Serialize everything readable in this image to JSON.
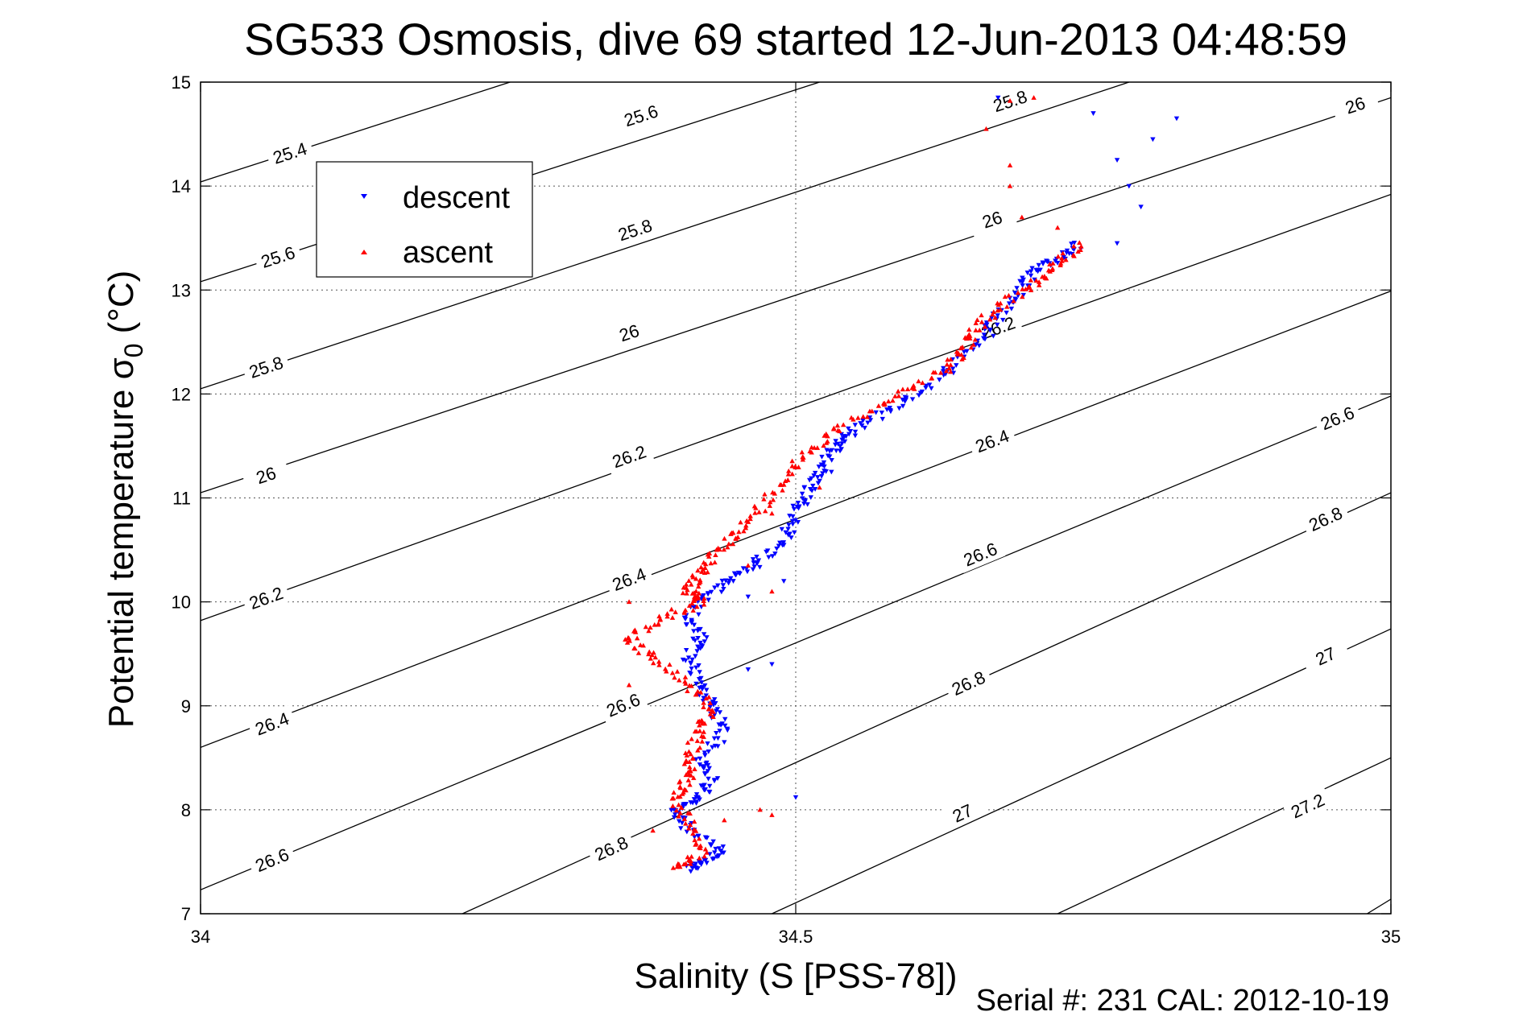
{
  "chart_data": {
    "type": "scatter",
    "title": "SG533 Osmosis, dive 69 started 12-Jun-2013 04:48:59",
    "xlabel": "Salinity (S [PSS-78])",
    "ylabel_main": "Potential temperature σ",
    "ylabel_sub": "0",
    "ylabel_unit": "(°C)",
    "footer": "Serial #: 231  CAL: 2012-10-19",
    "xlim": [
      34,
      35
    ],
    "ylim": [
      7,
      15
    ],
    "x_ticks": [
      34,
      34.5,
      35
    ],
    "x_tick_labels": [
      "34",
      "34.5",
      "35"
    ],
    "y_ticks": [
      7,
      8,
      9,
      10,
      11,
      12,
      13,
      14,
      15
    ],
    "y_tick_labels": [
      "7",
      "8",
      "9",
      "10",
      "11",
      "12",
      "13",
      "14",
      "15"
    ],
    "grid": true,
    "legend_placement": "top-left",
    "contours": {
      "label_values": [
        25.4,
        25.6,
        25.8,
        26,
        26.2,
        26.4,
        26.6,
        26.8,
        27,
        27.2
      ],
      "lines": [
        {
          "points": [
            [
              34,
              14.04
            ],
            [
              34.26,
              15
            ]
          ],
          "labels": [
            {
              "text": "25.4",
              "x": 34.075,
              "y": 14.32
            }
          ]
        },
        {
          "points": [
            [
              34,
              13.08
            ],
            [
              34.52,
              15
            ]
          ],
          "labels": [
            {
              "text": "25.6",
              "x": 34.065,
              "y": 13.32
            },
            {
              "text": "25.6",
              "x": 34.37,
              "y": 14.68
            }
          ]
        },
        {
          "points": [
            [
              34,
              12.05
            ],
            [
              34.78,
              15
            ]
          ],
          "labels": [
            {
              "text": "25.8",
              "x": 34.055,
              "y": 12.26
            },
            {
              "text": "25.8",
              "x": 34.365,
              "y": 13.58
            },
            {
              "text": "25.8",
              "x": 34.68,
              "y": 14.82
            }
          ]
        },
        {
          "points": [
            [
              34,
              11.05
            ],
            [
              35,
              14.85
            ]
          ],
          "labels": [
            {
              "text": "26",
              "x": 34.055,
              "y": 11.22
            },
            {
              "text": "26",
              "x": 34.36,
              "y": 12.59
            },
            {
              "text": "26",
              "x": 34.665,
              "y": 13.68
            },
            {
              "text": "26",
              "x": 34.97,
              "y": 14.78
            }
          ]
        },
        {
          "points": [
            [
              34,
              9.82
            ],
            [
              35,
              13.92
            ]
          ],
          "labels": [
            {
              "text": "26.2",
              "x": 34.055,
              "y": 10.04
            },
            {
              "text": "26.2",
              "x": 34.36,
              "y": 11.4
            },
            {
              "text": "26.2",
              "x": 34.67,
              "y": 12.64
            }
          ]
        },
        {
          "points": [
            [
              34,
              8.6
            ],
            [
              35,
              12.99
            ]
          ],
          "labels": [
            {
              "text": "26.4",
              "x": 34.06,
              "y": 8.83
            },
            {
              "text": "26.4",
              "x": 34.36,
              "y": 10.22
            },
            {
              "text": "26.4",
              "x": 34.665,
              "y": 11.55
            }
          ]
        },
        {
          "points": [
            [
              34,
              7.23
            ],
            [
              35,
              11.98
            ]
          ],
          "labels": [
            {
              "text": "26.6",
              "x": 34.06,
              "y": 7.52
            },
            {
              "text": "26.6",
              "x": 34.355,
              "y": 9.01
            },
            {
              "text": "26.6",
              "x": 34.655,
              "y": 10.46
            },
            {
              "text": "26.6",
              "x": 34.955,
              "y": 11.77
            }
          ]
        },
        {
          "points": [
            [
              34.22,
              7
            ],
            [
              35,
              11.05
            ]
          ],
          "labels": [
            {
              "text": "26.8",
              "x": 34.345,
              "y": 7.63
            },
            {
              "text": "26.8",
              "x": 34.645,
              "y": 9.22
            },
            {
              "text": "26.8",
              "x": 34.945,
              "y": 10.8
            }
          ]
        },
        {
          "points": [
            [
              34.48,
              7
            ],
            [
              35,
              9.74
            ]
          ],
          "labels": [
            {
              "text": "27",
              "x": 34.64,
              "y": 7.97
            },
            {
              "text": "27",
              "x": 34.945,
              "y": 9.48
            }
          ]
        },
        {
          "points": [
            [
              34.72,
              7
            ],
            [
              35,
              8.5
            ]
          ],
          "labels": [
            {
              "text": "27.2",
              "x": 34.93,
              "y": 8.04
            }
          ]
        },
        {
          "points": [
            [
              34.98,
              7
            ],
            [
              35,
              7.14
            ]
          ],
          "labels": []
        }
      ]
    },
    "series": [
      {
        "name": "descent",
        "color": "#0000ff",
        "marker": "triangle-down",
        "path": [
          [
            34.41,
            7.42
          ],
          [
            34.42,
            7.5
          ],
          [
            34.44,
            7.62
          ],
          [
            34.41,
            7.8
          ],
          [
            34.4,
            8.0
          ],
          [
            34.42,
            8.12
          ],
          [
            34.43,
            8.3
          ],
          [
            34.42,
            8.5
          ],
          [
            34.44,
            8.75
          ],
          [
            34.43,
            9.0
          ],
          [
            34.42,
            9.2
          ],
          [
            34.41,
            9.45
          ],
          [
            34.42,
            9.65
          ],
          [
            34.41,
            9.85
          ],
          [
            34.43,
            10.1
          ],
          [
            34.45,
            10.25
          ],
          [
            34.47,
            10.4
          ],
          [
            34.49,
            10.6
          ],
          [
            34.5,
            10.85
          ],
          [
            34.51,
            11.05
          ],
          [
            34.52,
            11.25
          ],
          [
            34.53,
            11.45
          ],
          [
            34.54,
            11.6
          ],
          [
            34.57,
            11.8
          ],
          [
            34.6,
            12.0
          ],
          [
            34.63,
            12.25
          ],
          [
            34.66,
            12.55
          ],
          [
            34.67,
            12.75
          ],
          [
            34.69,
            13.0
          ],
          [
            34.7,
            13.2
          ],
          [
            34.72,
            13.3
          ],
          [
            34.74,
            13.45
          ]
        ],
        "outliers": [
          [
            34.5,
            8.12
          ],
          [
            34.48,
            9.4
          ],
          [
            34.46,
            9.35
          ],
          [
            34.46,
            10.05
          ],
          [
            34.49,
            10.2
          ],
          [
            34.55,
            11.6
          ],
          [
            34.53,
            11.25
          ],
          [
            34.77,
            13.45
          ],
          [
            34.79,
            13.8
          ],
          [
            34.78,
            14.0
          ],
          [
            34.77,
            14.25
          ],
          [
            34.8,
            14.45
          ],
          [
            34.82,
            14.65
          ],
          [
            34.75,
            14.7
          ],
          [
            34.67,
            14.85
          ]
        ]
      },
      {
        "name": "ascent",
        "color": "#ff0000",
        "marker": "triangle-up",
        "path": [
          [
            34.4,
            7.45
          ],
          [
            34.42,
            7.55
          ],
          [
            34.41,
            7.85
          ],
          [
            34.4,
            8.1
          ],
          [
            34.41,
            8.3
          ],
          [
            34.41,
            8.5
          ],
          [
            34.42,
            8.75
          ],
          [
            34.43,
            8.95
          ],
          [
            34.41,
            9.2
          ],
          [
            34.38,
            9.45
          ],
          [
            34.36,
            9.65
          ],
          [
            34.39,
            9.85
          ],
          [
            34.42,
            10.0
          ],
          [
            34.41,
            10.1
          ],
          [
            34.42,
            10.25
          ],
          [
            34.43,
            10.45
          ],
          [
            34.45,
            10.65
          ],
          [
            34.47,
            10.9
          ],
          [
            34.49,
            11.2
          ],
          [
            34.51,
            11.45
          ],
          [
            34.54,
            11.7
          ],
          [
            34.58,
            11.95
          ],
          [
            34.62,
            12.2
          ],
          [
            34.64,
            12.4
          ],
          [
            34.65,
            12.6
          ],
          [
            34.67,
            12.85
          ],
          [
            34.7,
            13.05
          ],
          [
            34.72,
            13.25
          ],
          [
            34.74,
            13.45
          ]
        ],
        "outliers": [
          [
            34.47,
            8.0
          ],
          [
            34.48,
            7.95
          ],
          [
            34.44,
            7.9
          ],
          [
            34.38,
            7.8
          ],
          [
            34.48,
            10.1
          ],
          [
            34.46,
            10.35
          ],
          [
            34.36,
            10.0
          ],
          [
            34.36,
            9.2
          ],
          [
            34.48,
            10.85
          ],
          [
            34.52,
            11.1
          ],
          [
            34.72,
            13.6
          ],
          [
            34.69,
            13.7
          ],
          [
            34.68,
            14.2
          ],
          [
            34.68,
            14.0
          ],
          [
            34.66,
            14.55
          ],
          [
            34.68,
            14.82
          ],
          [
            34.7,
            14.85
          ]
        ]
      }
    ]
  }
}
